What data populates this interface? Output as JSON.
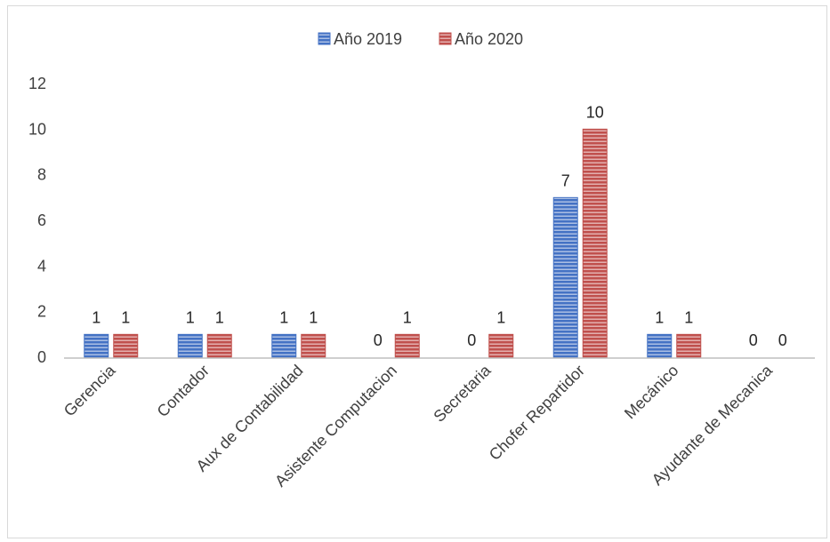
{
  "chart_data": {
    "type": "bar",
    "categories": [
      "Gerencia",
      "Contador",
      "Aux de Contabilidad",
      "Asistente Computacion",
      "Secretaria",
      "Chofer Repartidor",
      "Mecánico",
      "Ayudante de Mecanica"
    ],
    "series": [
      {
        "name": "Año 2019",
        "values": [
          1,
          1,
          1,
          0,
          0,
          7,
          1,
          0
        ],
        "color": "#4472c4"
      },
      {
        "name": "Año 2020",
        "values": [
          1,
          1,
          1,
          1,
          1,
          10,
          1,
          0
        ],
        "color": "#c0504d"
      }
    ],
    "ylim": [
      0,
      12
    ],
    "yticks": [
      "0",
      "2",
      "4",
      "6",
      "8",
      "10",
      "12"
    ],
    "legend_position": "top-center",
    "grid": false,
    "data_labels": true
  }
}
